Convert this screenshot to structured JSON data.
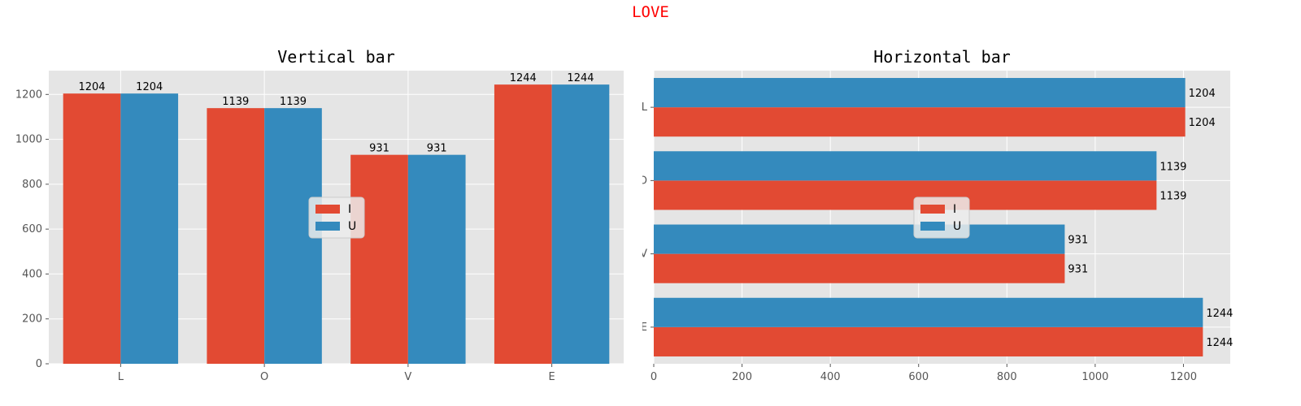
{
  "suptitle": "LOVE",
  "colors": {
    "series_I": "#E24A33",
    "series_U": "#348ABD",
    "panel_bg": "#E5E5E5",
    "grid": "#FFFFFF",
    "suptitle": "#FF0000"
  },
  "chart_data": [
    {
      "type": "bar",
      "orientation": "vertical",
      "title": "Vertical bar",
      "categories": [
        "L",
        "O",
        "V",
        "E"
      ],
      "series": [
        {
          "name": "I",
          "values": [
            1204,
            1139,
            931,
            1244
          ]
        },
        {
          "name": "U",
          "values": [
            1204,
            1139,
            931,
            1244
          ]
        }
      ],
      "yticks": [
        0,
        200,
        400,
        600,
        800,
        1000,
        1200
      ],
      "ylim": [
        0,
        1306
      ],
      "grid": true,
      "legend": "center"
    },
    {
      "type": "bar",
      "orientation": "horizontal",
      "title": "Horizontal bar",
      "categories": [
        "L",
        "O",
        "V",
        "E"
      ],
      "series": [
        {
          "name": "I",
          "values": [
            1204,
            1139,
            931,
            1244
          ]
        },
        {
          "name": "U",
          "values": [
            1204,
            1139,
            931,
            1244
          ]
        }
      ],
      "xticks": [
        0,
        200,
        400,
        600,
        800,
        1000,
        1200
      ],
      "xlim": [
        0,
        1306
      ],
      "grid": true,
      "legend": "center"
    }
  ]
}
